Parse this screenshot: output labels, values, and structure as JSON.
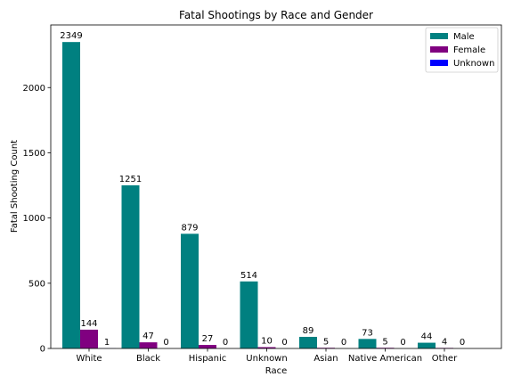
{
  "chart_data": {
    "type": "bar",
    "title": "Fatal Shootings by Race and Gender",
    "xlabel": "Race",
    "ylabel": "Fatal Shooting Count",
    "categories": [
      "White",
      "Black",
      "Hispanic",
      "Unknown",
      "Asian",
      "Native American",
      "Other"
    ],
    "series": [
      {
        "name": "Male",
        "color": "#008080",
        "values": [
          2349,
          1251,
          879,
          514,
          89,
          73,
          44
        ]
      },
      {
        "name": "Female",
        "color": "#800080",
        "values": [
          144,
          47,
          27,
          10,
          5,
          5,
          4
        ]
      },
      {
        "name": "Unknown",
        "color": "#0000ff",
        "values": [
          1,
          0,
          0,
          0,
          0,
          0,
          0
        ]
      }
    ],
    "ylim": [
      0,
      2480
    ],
    "yticks": [
      0,
      500,
      1000,
      1500,
      2000
    ],
    "grid": false,
    "legend": "top-right"
  }
}
